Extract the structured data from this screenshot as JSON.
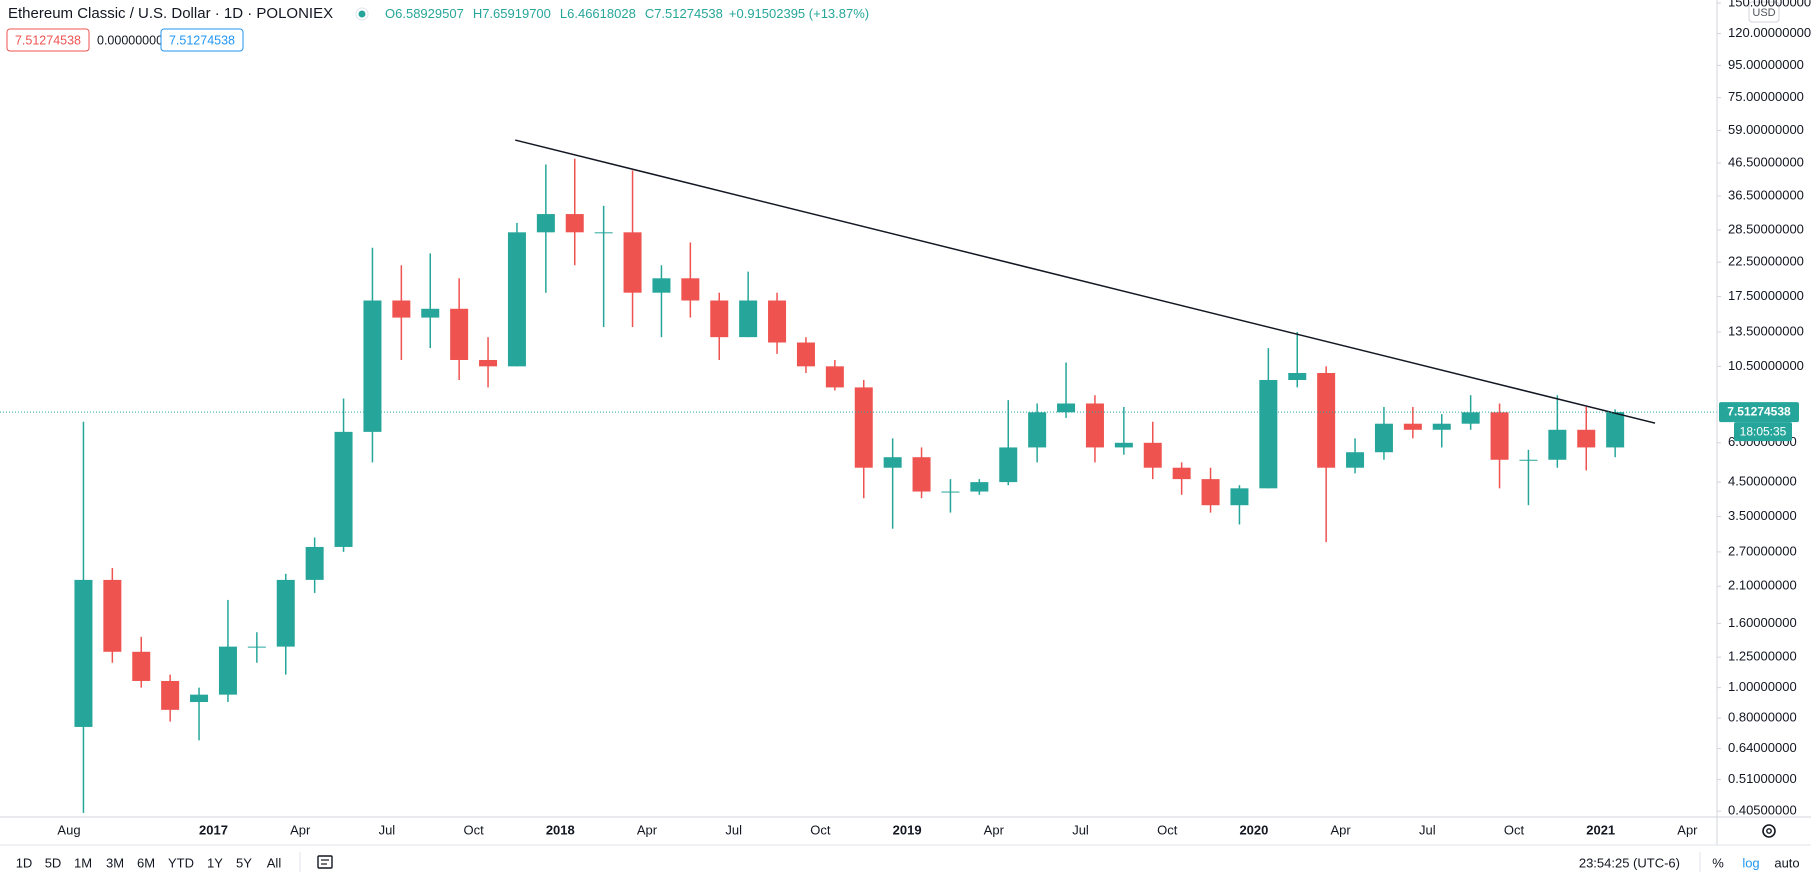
{
  "header": {
    "title": "Ethereum Classic / U.S. Dollar · 1D · POLONIEX",
    "ohlc": [
      {
        "key": "O",
        "value": "6.58929507"
      },
      {
        "key": "H",
        "value": "7.65919700"
      },
      {
        "key": "L",
        "value": "6.46618028"
      },
      {
        "key": "C",
        "value": "7.51274538"
      }
    ],
    "change": "+0.91502395 (+13.87%)"
  },
  "indicator_values": [
    "7.51274538",
    "0.00000000",
    "7.51274538"
  ],
  "toolbar": {
    "ranges": [
      "1D",
      "5D",
      "1M",
      "3M",
      "6M",
      "YTD",
      "1Y",
      "5Y",
      "All"
    ],
    "clock": "23:54:25 (UTC-6)",
    "scale_options": [
      "%",
      "log",
      "auto"
    ]
  },
  "chart_data": {
    "type": "candlestick",
    "log": true,
    "grid": false,
    "currency": "USD",
    "up_color": "#26a69a",
    "down_color": "#ef5350",
    "categories": [
      "Aug",
      null,
      null,
      null,
      null,
      "2017",
      null,
      null,
      "Apr",
      null,
      null,
      "Jul",
      null,
      null,
      "Oct",
      null,
      null,
      "2018",
      null,
      null,
      "Apr",
      null,
      null,
      "Jul",
      null,
      null,
      "Oct",
      null,
      null,
      "2019",
      null,
      null,
      "Apr",
      null,
      null,
      "Jul",
      null,
      null,
      "Oct",
      null,
      null,
      "2020",
      null,
      null,
      "Apr",
      null,
      null,
      "Jul",
      null,
      null,
      "Oct",
      null,
      null,
      "2021",
      null,
      null,
      "Apr",
      null
    ],
    "open": [
      0.75,
      2.2,
      1.3,
      1.05,
      0.9,
      0.95,
      1.35,
      1.35,
      2.2,
      2.8,
      6.5,
      17,
      15,
      16,
      11,
      10.5,
      28,
      32,
      28,
      28,
      18,
      20,
      17,
      13,
      17,
      12.5,
      10.5,
      9,
      5,
      5.4,
      4.2,
      4.2,
      4.5,
      5.8,
      7.5,
      8,
      5.8,
      6.0,
      5.0,
      4.6,
      3.8,
      4.3,
      9.5,
      10,
      5.0,
      5.6,
      6.9,
      6.6,
      6.9,
      7.5,
      5.3,
      5.3,
      6.6,
      5.8,
      null,
      null,
      null,
      null
    ],
    "high": [
      7.0,
      2.4,
      1.45,
      1.1,
      1.0,
      1.9,
      1.5,
      2.3,
      3.0,
      8.3,
      25,
      22,
      24,
      20,
      13,
      30,
      46,
      48,
      34,
      44,
      22,
      26,
      18,
      21,
      18,
      13,
      11,
      9.5,
      6.2,
      5.8,
      4.6,
      4.6,
      8.2,
      8,
      10.8,
      8.5,
      7.8,
      7.0,
      5.2,
      5.0,
      4.4,
      12,
      13.5,
      10.5,
      6.2,
      7.8,
      7.8,
      7.4,
      8.5,
      8.0,
      5.7,
      8.5,
      7.8,
      7.66,
      null,
      null,
      null,
      null
    ],
    "low": [
      0.4,
      1.2,
      1.0,
      0.78,
      0.68,
      0.9,
      1.2,
      1.1,
      2.0,
      2.7,
      5.2,
      11,
      12,
      9.5,
      9,
      10.5,
      18,
      22,
      14,
      14,
      13,
      15,
      11,
      13,
      11.5,
      10,
      8.8,
      4,
      3.2,
      4.0,
      3.6,
      4.1,
      4.4,
      5.2,
      7.2,
      5.2,
      5.5,
      4.6,
      4.1,
      3.6,
      3.3,
      4.3,
      9,
      2.9,
      4.8,
      5.3,
      6.2,
      5.8,
      6.6,
      4.3,
      3.8,
      5.0,
      4.9,
      5.4,
      null,
      null,
      null,
      null
    ],
    "close": [
      2.2,
      1.3,
      1.05,
      0.85,
      0.95,
      1.35,
      1.35,
      2.2,
      2.8,
      6.5,
      17,
      15,
      16,
      11,
      10.5,
      28,
      32,
      28,
      28,
      18,
      20,
      17,
      13,
      17,
      12.5,
      10.5,
      9,
      5,
      5.4,
      4.2,
      4.2,
      4.5,
      5.8,
      7.5,
      8,
      5.8,
      6.0,
      5.0,
      4.6,
      3.8,
      4.3,
      9.5,
      10,
      5.0,
      5.6,
      6.9,
      6.6,
      6.9,
      7.5,
      5.3,
      5.3,
      6.6,
      5.8,
      7.51,
      null,
      null,
      null,
      null
    ],
    "ylim": [
      0.388,
      153.3
    ],
    "yticks": [
      {
        "value": 0.405,
        "label": "0.40500000"
      },
      {
        "value": 0.51,
        "label": "0.51000000"
      },
      {
        "value": 0.64,
        "label": "0.64000000"
      },
      {
        "value": 0.8,
        "label": "0.80000000"
      },
      {
        "value": 1.0,
        "label": "1.00000000"
      },
      {
        "value": 1.25,
        "label": "1.25000000"
      },
      {
        "value": 1.6,
        "label": "1.60000000"
      },
      {
        "value": 2.1,
        "label": "2.10000000"
      },
      {
        "value": 2.7,
        "label": "2.70000000"
      },
      {
        "value": 3.5,
        "label": "3.50000000"
      },
      {
        "value": 4.5,
        "label": "4.50000000"
      },
      {
        "value": 6.0,
        "label": "6.00000000"
      },
      {
        "value": 10.5,
        "label": "10.50000000"
      },
      {
        "value": 13.5,
        "label": "13.50000000"
      },
      {
        "value": 17.5,
        "label": "17.50000000"
      },
      {
        "value": 22.5,
        "label": "22.50000000"
      },
      {
        "value": 28.5,
        "label": "28.50000000"
      },
      {
        "value": 36.5,
        "label": "36.50000000"
      },
      {
        "value": 46.5,
        "label": "46.50000000"
      },
      {
        "value": 59,
        "label": "59.00000000"
      },
      {
        "value": 75,
        "label": "75.00000000"
      },
      {
        "value": 95,
        "label": "95.00000000"
      },
      {
        "value": 120,
        "label": "120.00000000"
      },
      {
        "value": 150,
        "label": "150.00000000"
      }
    ],
    "last_price": 7.51274538,
    "countdown": "18:05:35",
    "trend_line": {
      "x": [
        15.44,
        54.88
      ],
      "y": [
        55.0,
        6.93
      ]
    }
  }
}
